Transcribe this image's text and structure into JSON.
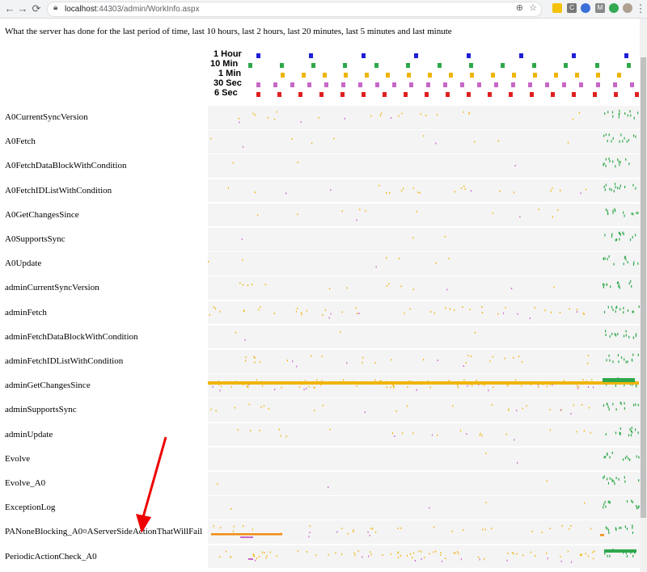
{
  "browser": {
    "url_host": "localhost",
    "url_rest": ":44303/admin/WorkInfo.aspx"
  },
  "page": {
    "description": "What the server has done for the last period of time, last 10 hours, last 2 hours, last 20 minutes, last 5 minutes and last minute"
  },
  "legend": [
    {
      "label": "1 Hour",
      "color": "#1f1fd6"
    },
    {
      "label": "10 Min",
      "color": "#2ea84a"
    },
    {
      "label": "1 Min",
      "color": "#f0b40a"
    },
    {
      "label": "30 Sec",
      "color": "#c867c8"
    },
    {
      "label": "6 Sec",
      "color": "#e02020"
    }
  ],
  "rows": [
    {
      "label": "A0CurrentSyncVersion"
    },
    {
      "label": "A0Fetch"
    },
    {
      "label": "A0FetchDataBlockWithCondition"
    },
    {
      "label": "A0FetchIDListWithCondition"
    },
    {
      "label": "A0GetChangesSince"
    },
    {
      "label": "A0SupportsSync"
    },
    {
      "label": "A0Update"
    },
    {
      "label": "adminCurrentSyncVersion"
    },
    {
      "label": "adminFetch"
    },
    {
      "label": "adminFetchDataBlockWithCondition"
    },
    {
      "label": "adminFetchIDListWithCondition"
    },
    {
      "label": "adminGetChangesSince"
    },
    {
      "label": "adminSupportsSync"
    },
    {
      "label": "adminUpdate"
    },
    {
      "label": "Evolve"
    },
    {
      "label": "Evolve_A0"
    },
    {
      "label": "ExceptionLog"
    },
    {
      "label": "PANoneBlocking_A0¤AServerSideActionThatWillFail"
    },
    {
      "label": "PeriodicActionCheck_A0"
    }
  ]
}
